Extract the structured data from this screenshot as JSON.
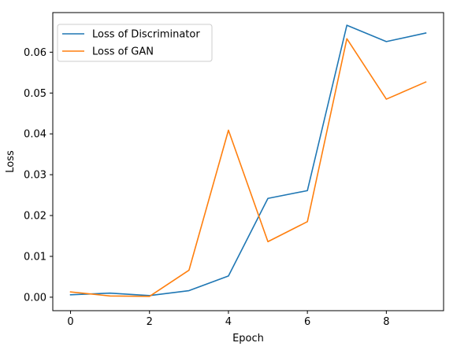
{
  "chart_data": {
    "type": "line",
    "title": "",
    "xlabel": "Epoch",
    "ylabel": "Loss",
    "xlim": [
      -0.45,
      9.45
    ],
    "ylim": [
      -0.0033,
      0.0697
    ],
    "xticks": [
      0,
      2,
      4,
      6,
      8
    ],
    "xtick_labels": [
      "0",
      "2",
      "4",
      "6",
      "8"
    ],
    "yticks": [
      0.0,
      0.01,
      0.02,
      0.03,
      0.04,
      0.05,
      0.06
    ],
    "ytick_labels": [
      "0.00",
      "0.01",
      "0.02",
      "0.03",
      "0.04",
      "0.05",
      "0.06"
    ],
    "grid": false,
    "legend_position": "top-left",
    "x": [
      0,
      1,
      2,
      3,
      4,
      5,
      6,
      7,
      8,
      9
    ],
    "series": [
      {
        "name": "Loss of Discriminator",
        "color": "#1f77b4",
        "values": [
          0.0006,
          0.001,
          0.0004,
          0.0016,
          0.0052,
          0.0242,
          0.0261,
          0.0666,
          0.0626,
          0.0647
        ]
      },
      {
        "name": "Loss of GAN",
        "color": "#ff7f0e",
        "values": [
          0.0013,
          0.0003,
          0.0002,
          0.0066,
          0.0409,
          0.0136,
          0.0185,
          0.0633,
          0.0485,
          0.0527
        ]
      }
    ]
  }
}
